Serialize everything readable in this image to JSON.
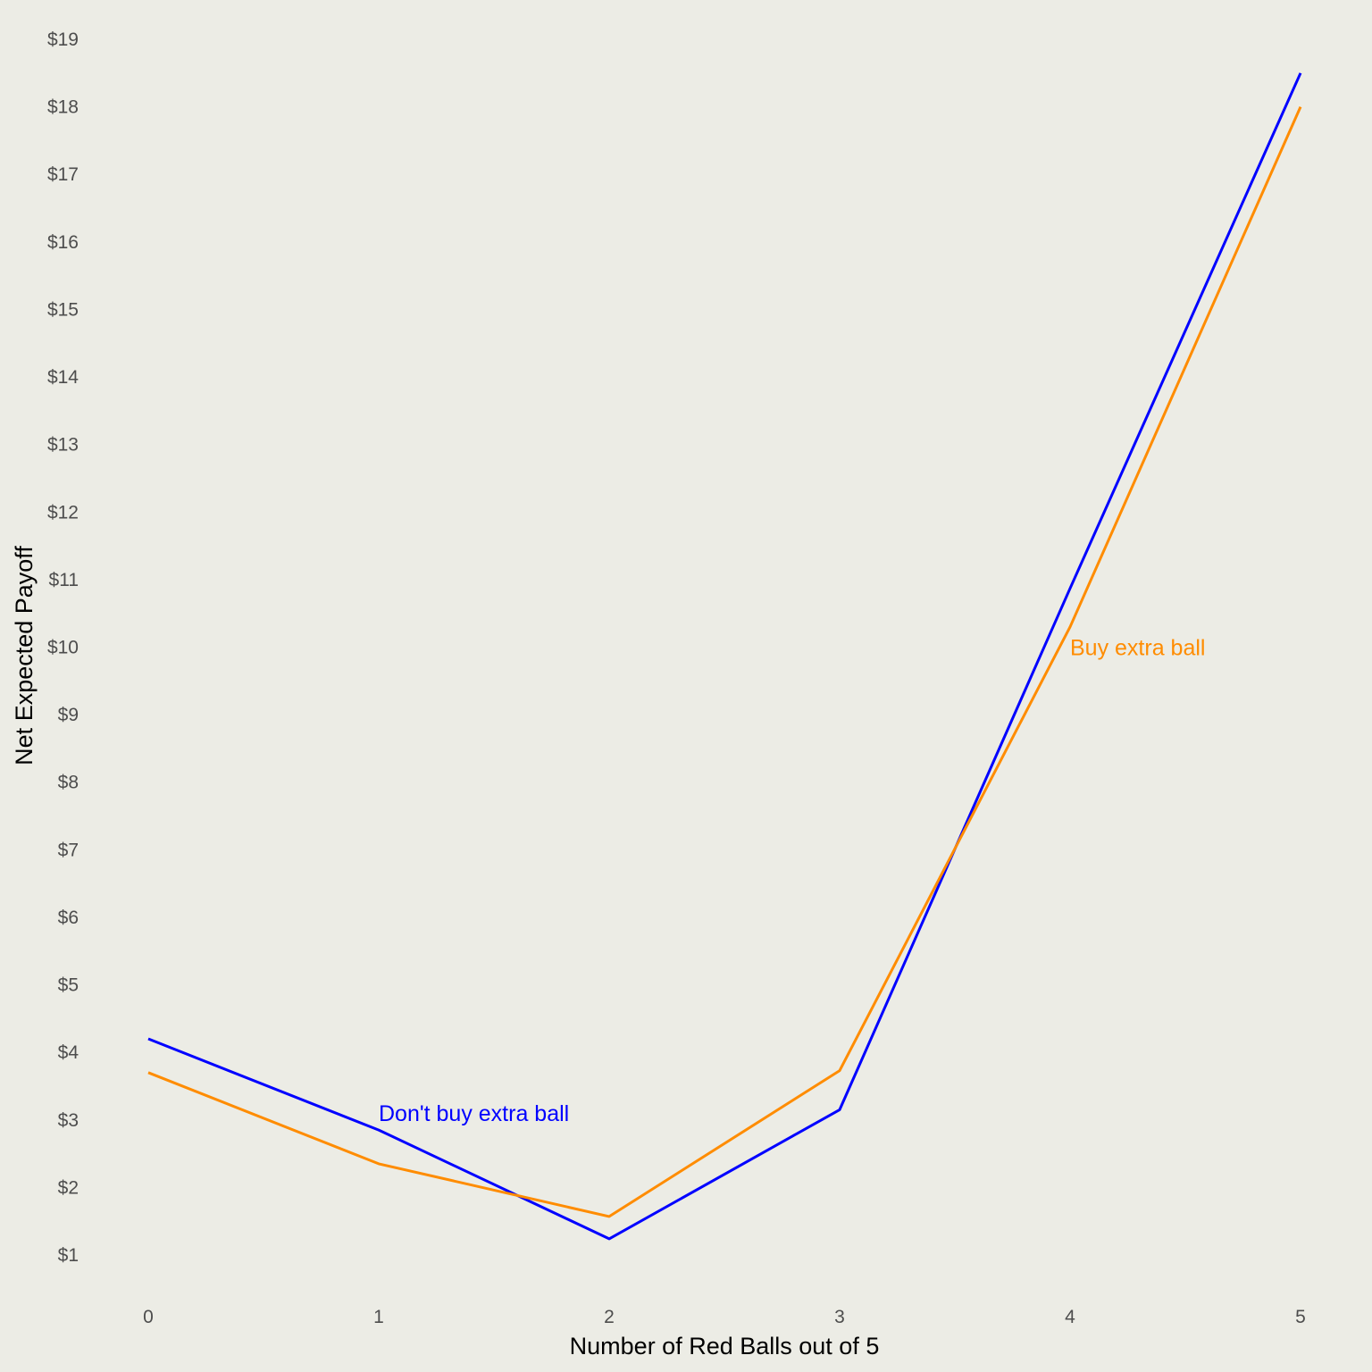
{
  "colors": {
    "background": "#ecece5",
    "tick_text": "#4d4d4d",
    "axis_title": "#000000"
  },
  "chart_data": {
    "type": "line",
    "title": "",
    "xlabel": "Number of Red Balls out of 5",
    "ylabel": "Net Expected Payoff",
    "x": [
      0,
      1,
      2,
      3,
      4,
      5
    ],
    "x_tick_labels": [
      "0",
      "1",
      "2",
      "3",
      "4",
      "5"
    ],
    "y_ticks": [
      1,
      2,
      3,
      4,
      5,
      6,
      7,
      8,
      9,
      10,
      11,
      12,
      13,
      14,
      15,
      16,
      17,
      18,
      19
    ],
    "y_tick_labels": [
      "$1",
      "$2",
      "$3",
      "$4",
      "$5",
      "$6",
      "$7",
      "$8",
      "$9",
      "$10",
      "$11",
      "$12",
      "$13",
      "$14",
      "$15",
      "$16",
      "$17",
      "$18",
      "$19"
    ],
    "xlim": [
      0,
      5
    ],
    "ylim": [
      0.6,
      19.4
    ],
    "grid": false,
    "legend": "none",
    "series": [
      {
        "name": "Don't buy extra ball",
        "color": "#0000ff",
        "values": [
          4.2,
          2.85,
          1.24,
          3.15,
          10.87,
          18.5
        ]
      },
      {
        "name": "Buy extra ball",
        "color": "#ff8c00",
        "values": [
          3.7,
          2.35,
          1.57,
          3.73,
          10.3,
          18.0
        ]
      }
    ],
    "annotations": [
      {
        "text": "Don't buy extra ball",
        "series": 0,
        "x": 1,
        "y": 3.1
      },
      {
        "text": "Buy extra ball",
        "series": 1,
        "x": 4,
        "y": 10.0
      }
    ]
  }
}
